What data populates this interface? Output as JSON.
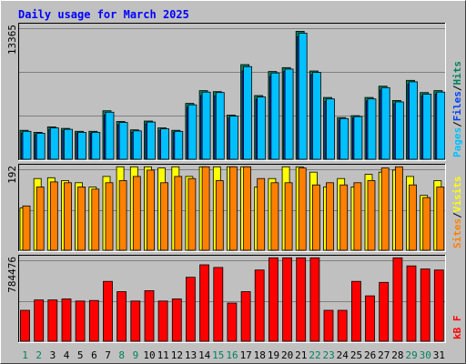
{
  "title": "Daily usage for March 2025",
  "colors": {
    "frame_bg": "#c0c0c0",
    "plot_bg": "#c0c0c0",
    "gridline": "#808080",
    "title_text": "#0000ff",
    "hits": "#00805c",
    "files": "#0040ff",
    "pages": "#00c0ff",
    "visits": "#ffff00",
    "sites": "#ff8000",
    "kbytes": "#ff0000",
    "weekday_label": "#000000",
    "weekend_label": "#00805c"
  },
  "panels": [
    {
      "id": "requests",
      "ymax_label": "13365",
      "legend": [
        {
          "text": "Pages",
          "color": "#00c0ff"
        },
        {
          "text": "/",
          "color": "#000000"
        },
        {
          "text": "Files",
          "color": "#0040ff"
        },
        {
          "text": "/",
          "color": "#000000"
        },
        {
          "text": "Hits",
          "color": "#00805c"
        }
      ]
    },
    {
      "id": "visitors",
      "ymax_label": "192",
      "legend": [
        {
          "text": "Sites",
          "color": "#ff8000"
        },
        {
          "text": "/",
          "color": "#000000"
        },
        {
          "text": "Visits",
          "color": "#ffff00"
        }
      ]
    },
    {
      "id": "volume",
      "ymax_label": "784476",
      "legend": [
        {
          "text": "kB F",
          "color": "#ff0000"
        }
      ]
    }
  ],
  "chart_data": {
    "type": "bar",
    "title": "Daily usage for March 2025",
    "categories": [
      "1",
      "2",
      "3",
      "4",
      "5",
      "6",
      "7",
      "8",
      "9",
      "10",
      "11",
      "12",
      "13",
      "14",
      "15",
      "16",
      "17",
      "18",
      "19",
      "20",
      "21",
      "22",
      "23",
      "24",
      "25",
      "26",
      "27",
      "28",
      "29",
      "30",
      "31"
    ],
    "weekend_days": [
      "1",
      "2",
      "8",
      "9",
      "15",
      "16",
      "22",
      "23",
      "29",
      "30"
    ],
    "panels": [
      {
        "id": "requests",
        "ymax": 13365,
        "series": [
          {
            "name": "Hits",
            "color": "#00805c",
            "values": [
              2950,
              2750,
              3300,
              3150,
              2850,
              2850,
              4950,
              3850,
              3000,
              3900,
              3200,
              2950,
              5700,
              7000,
              6900,
              4500,
              9650,
              6500,
              8950,
              9350,
              13050,
              9000,
              6300,
              4250,
              4450,
              6300,
              7450,
              6000,
              8050,
              6800,
              7000
            ]
          },
          {
            "name": "Files",
            "color": "#0040ff",
            "values": [
              2650,
              2500,
              3000,
              2900,
              2650,
              2650,
              4500,
              3500,
              2750,
              3600,
              2950,
              2750,
              5300,
              6500,
              6450,
              4200,
              9000,
              6100,
              8450,
              8950,
              12500,
              8600,
              5900,
              4000,
              4200,
              5950,
              7050,
              5650,
              7650,
              6450,
              6650
            ]
          },
          {
            "name": "Pages",
            "color": "#00c0ff",
            "values": [
              2850,
              2650,
              3200,
              3050,
              2750,
              2750,
              4800,
              3750,
              2900,
              3800,
              3100,
              2850,
              5550,
              6850,
              6800,
              4400,
              9450,
              6350,
              8800,
              9200,
              12850,
              8850,
              6150,
              4150,
              4350,
              6150,
              7300,
              5850,
              7900,
              6650,
              6850
            ]
          }
        ]
      },
      {
        "id": "visitors",
        "ymax": 192,
        "series": [
          {
            "name": "Visits",
            "color": "#ffff00",
            "values": [
              100,
              170,
              172,
              165,
              160,
              150,
              175,
              225,
              215,
              200,
              195,
              200,
              175,
              225,
              205,
              205,
              205,
              150,
              170,
              205,
              205,
              185,
              150,
              170,
              150,
              180,
              185,
              190,
              175,
              130,
              165
            ]
          },
          {
            "name": "Sites",
            "color": "#ff8000",
            "values": [
              105,
              150,
              162,
              160,
              150,
              145,
              160,
              165,
              175,
              190,
              160,
              175,
              170,
              210,
              165,
              210,
              200,
              170,
              160,
              160,
              195,
              155,
              160,
              155,
              160,
              165,
              195,
              200,
              155,
              125,
              150
            ]
          }
        ]
      },
      {
        "id": "volume",
        "ymax": 784476,
        "series": [
          {
            "name": "kB F",
            "color": "#ff0000",
            "values": [
              300000,
              400000,
              400000,
              410000,
              390000,
              395000,
              580000,
              480000,
              390000,
              490000,
              390000,
              410000,
              620000,
              740000,
              715000,
              370000,
              480000,
              690000,
              990000,
              1030000,
              890000,
              880000,
              300000,
              300000,
              580000,
              440000,
              570000,
              850000,
              730000,
              700000,
              690000
            ]
          }
        ]
      }
    ]
  }
}
